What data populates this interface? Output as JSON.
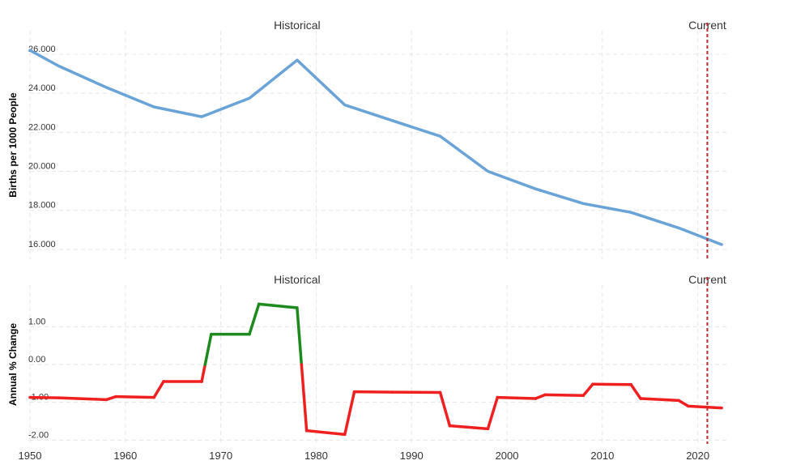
{
  "chart_data": [
    {
      "type": "line",
      "ylabel": "Births per 1000 People",
      "xlim": [
        1950,
        2023
      ],
      "ylim": [
        15.5,
        27.2
      ],
      "yticks": [
        16,
        18,
        20,
        22,
        24,
        26
      ],
      "ytick_labels": [
        "16.000",
        "18.000",
        "20.000",
        "22.000",
        "24.000",
        "26.000"
      ],
      "annotations": [
        {
          "text": "Historical",
          "x": 1978
        },
        {
          "text": "Current",
          "x": 2021
        }
      ],
      "current_line_x": 2021,
      "series": [
        {
          "color": "#6aa3d8",
          "x": [
            1950,
            1953,
            1958,
            1963,
            1968,
            1973,
            1978,
            1983,
            1988,
            1993,
            1998,
            2003,
            2008,
            2013,
            2018,
            2022.5
          ],
          "y": [
            26.2,
            25.4,
            24.3,
            23.3,
            22.8,
            23.75,
            25.7,
            23.4,
            22.6,
            21.8,
            20.0,
            19.1,
            18.35,
            17.9,
            17.1,
            16.25
          ]
        }
      ]
    },
    {
      "type": "line",
      "ylabel": "Annual % Change",
      "xlim": [
        1950,
        2023
      ],
      "ylim": [
        -2.1,
        2.1
      ],
      "yticks": [
        -2,
        -1,
        0,
        1
      ],
      "ytick_labels": [
        "-2.00",
        "-1.00",
        "0.00",
        "1.00"
      ],
      "xticks": [
        1950,
        1960,
        1970,
        1980,
        1990,
        2000,
        2010,
        2020
      ],
      "annotations": [
        {
          "text": "Historical",
          "x": 1978
        },
        {
          "text": "Current",
          "x": 2021
        }
      ],
      "current_line_x": 2021,
      "positive_color": "#1e8a1e",
      "negative_color": "#f02020",
      "series": [
        {
          "x": [
            1950,
            1953,
            1953,
            1958,
            1958,
            1959,
            1959,
            1963,
            1963,
            1964,
            1964,
            1968,
            1968,
            1969,
            1969,
            1973,
            1973,
            1974,
            1974,
            1978,
            1978,
            1979,
            1979,
            1983,
            1983,
            1984,
            1984,
            1988,
            1988,
            1993,
            1993,
            1994,
            1994,
            1998,
            1998,
            1999,
            1999,
            2003,
            2003,
            2004,
            2004,
            2008,
            2008,
            2009,
            2009,
            2013,
            2013,
            2014,
            2014,
            2018,
            2018,
            2019,
            2019,
            2022.5
          ],
          "y": [
            -0.87,
            -0.88,
            -0.88,
            -0.93,
            -0.93,
            -0.85,
            -0.85,
            -0.87,
            -0.87,
            -0.45,
            -0.45,
            -0.45,
            -0.45,
            0.8,
            0.8,
            0.8,
            0.8,
            1.6,
            1.6,
            1.5,
            1.5,
            -1.75,
            -1.75,
            -1.85,
            -1.85,
            -0.72,
            -0.72,
            -0.73,
            -0.73,
            -0.74,
            -0.74,
            -1.62,
            -1.62,
            -1.7,
            -1.7,
            -0.87,
            -0.87,
            -0.9,
            -0.9,
            -0.8,
            -0.8,
            -0.82,
            -0.82,
            -0.52,
            -0.52,
            -0.53,
            -0.53,
            -0.9,
            -0.9,
            -0.95,
            -0.95,
            -1.1,
            -1.1,
            -1.15
          ]
        }
      ]
    }
  ]
}
